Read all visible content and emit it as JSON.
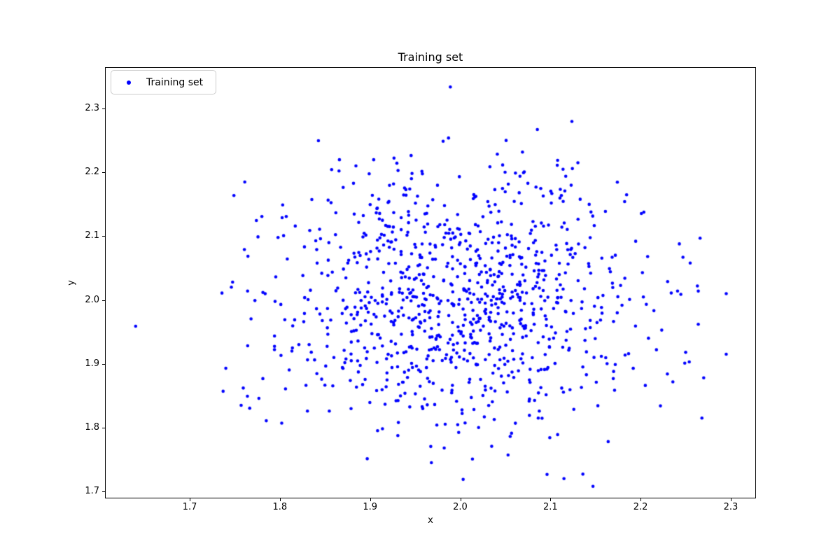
{
  "chart_data": {
    "type": "scatter",
    "title": "Training set",
    "xlabel": "x",
    "ylabel": "y",
    "xlim": [
      1.606,
      2.328
    ],
    "ylim": [
      1.689,
      2.365
    ],
    "xticks": [
      1.7,
      1.8,
      1.9,
      2.0,
      2.1,
      2.2,
      2.3
    ],
    "xtick_labels": [
      "1.7",
      "1.8",
      "1.9",
      "2.0",
      "2.1",
      "2.2",
      "2.3"
    ],
    "yticks": [
      1.7,
      1.8,
      1.9,
      2.0,
      2.1,
      2.2,
      2.3
    ],
    "ytick_labels": [
      "1.7",
      "1.8",
      "1.9",
      "2.0",
      "2.1",
      "2.2",
      "2.3"
    ],
    "grid": false,
    "legend": {
      "label": "Training set",
      "position": "upper-left"
    },
    "marker": {
      "shape": "dot",
      "color": "#0000ff",
      "radius_px": 2.3
    },
    "series": [
      {
        "name": "Training set",
        "distribution": {
          "type": "gaussian",
          "n": 1000,
          "mean": [
            1.998,
            1.995
          ],
          "std": [
            0.097,
            0.099
          ],
          "seed": 20
        },
        "points": [
          [
            1.64,
            1.959
          ],
          [
            1.989,
            2.334
          ],
          [
            1.981,
            2.249
          ],
          [
            1.987,
            2.254
          ],
          [
            1.761,
            2.185
          ],
          [
            1.78,
            2.131
          ],
          [
            1.807,
            2.131
          ],
          [
            1.817,
            2.116
          ],
          [
            1.844,
            2.111
          ],
          [
            1.845,
            2.096
          ],
          [
            1.866,
            2.22
          ],
          [
            1.904,
            2.22
          ],
          [
            1.899,
            2.198
          ],
          [
            1.931,
            2.203
          ],
          [
            1.958,
            2.198
          ],
          [
            1.926,
            2.182
          ],
          [
            1.944,
            2.174
          ],
          [
            1.92,
            2.153
          ],
          [
            2.069,
            2.232
          ],
          [
            2.108,
            2.219
          ],
          [
            2.114,
            2.205
          ],
          [
            2.071,
            2.201
          ],
          [
            2.117,
            2.194
          ],
          [
            2.075,
            2.183
          ],
          [
            2.084,
            2.177
          ],
          [
            2.123,
            2.18
          ],
          [
            2.116,
            2.171
          ],
          [
            2.092,
            2.163
          ],
          [
            2.133,
            2.158
          ],
          [
            2.101,
            2.152
          ],
          [
            2.143,
            2.15
          ],
          [
            2.161,
            2.139
          ],
          [
            2.145,
            2.138
          ],
          [
            2.266,
            2.097
          ],
          [
            2.243,
            2.088
          ],
          [
            2.247,
            2.067
          ],
          [
            2.255,
            2.058
          ],
          [
            2.23,
            2.029
          ],
          [
            2.263,
            2.022
          ],
          [
            2.264,
            2.014
          ],
          [
            2.234,
            2.011
          ],
          [
            2.295,
            2.01
          ],
          [
            2.264,
            1.962
          ],
          [
            2.25,
            1.918
          ],
          [
            2.295,
            1.915
          ],
          [
            2.254,
            1.903
          ],
          [
            2.249,
            1.901
          ],
          [
            2.27,
            1.878
          ],
          [
            2.268,
            1.815
          ],
          [
            2.115,
            1.72
          ],
          [
            2.136,
            1.727
          ],
          [
            1.968,
            1.745
          ],
          [
            2.053,
            1.757
          ],
          [
            2.108,
            1.789
          ],
          [
            1.737,
            1.857
          ],
          [
            1.757,
            1.835
          ],
          [
            1.802,
            1.807
          ],
          [
            1.74,
            1.893
          ]
        ]
      }
    ]
  }
}
